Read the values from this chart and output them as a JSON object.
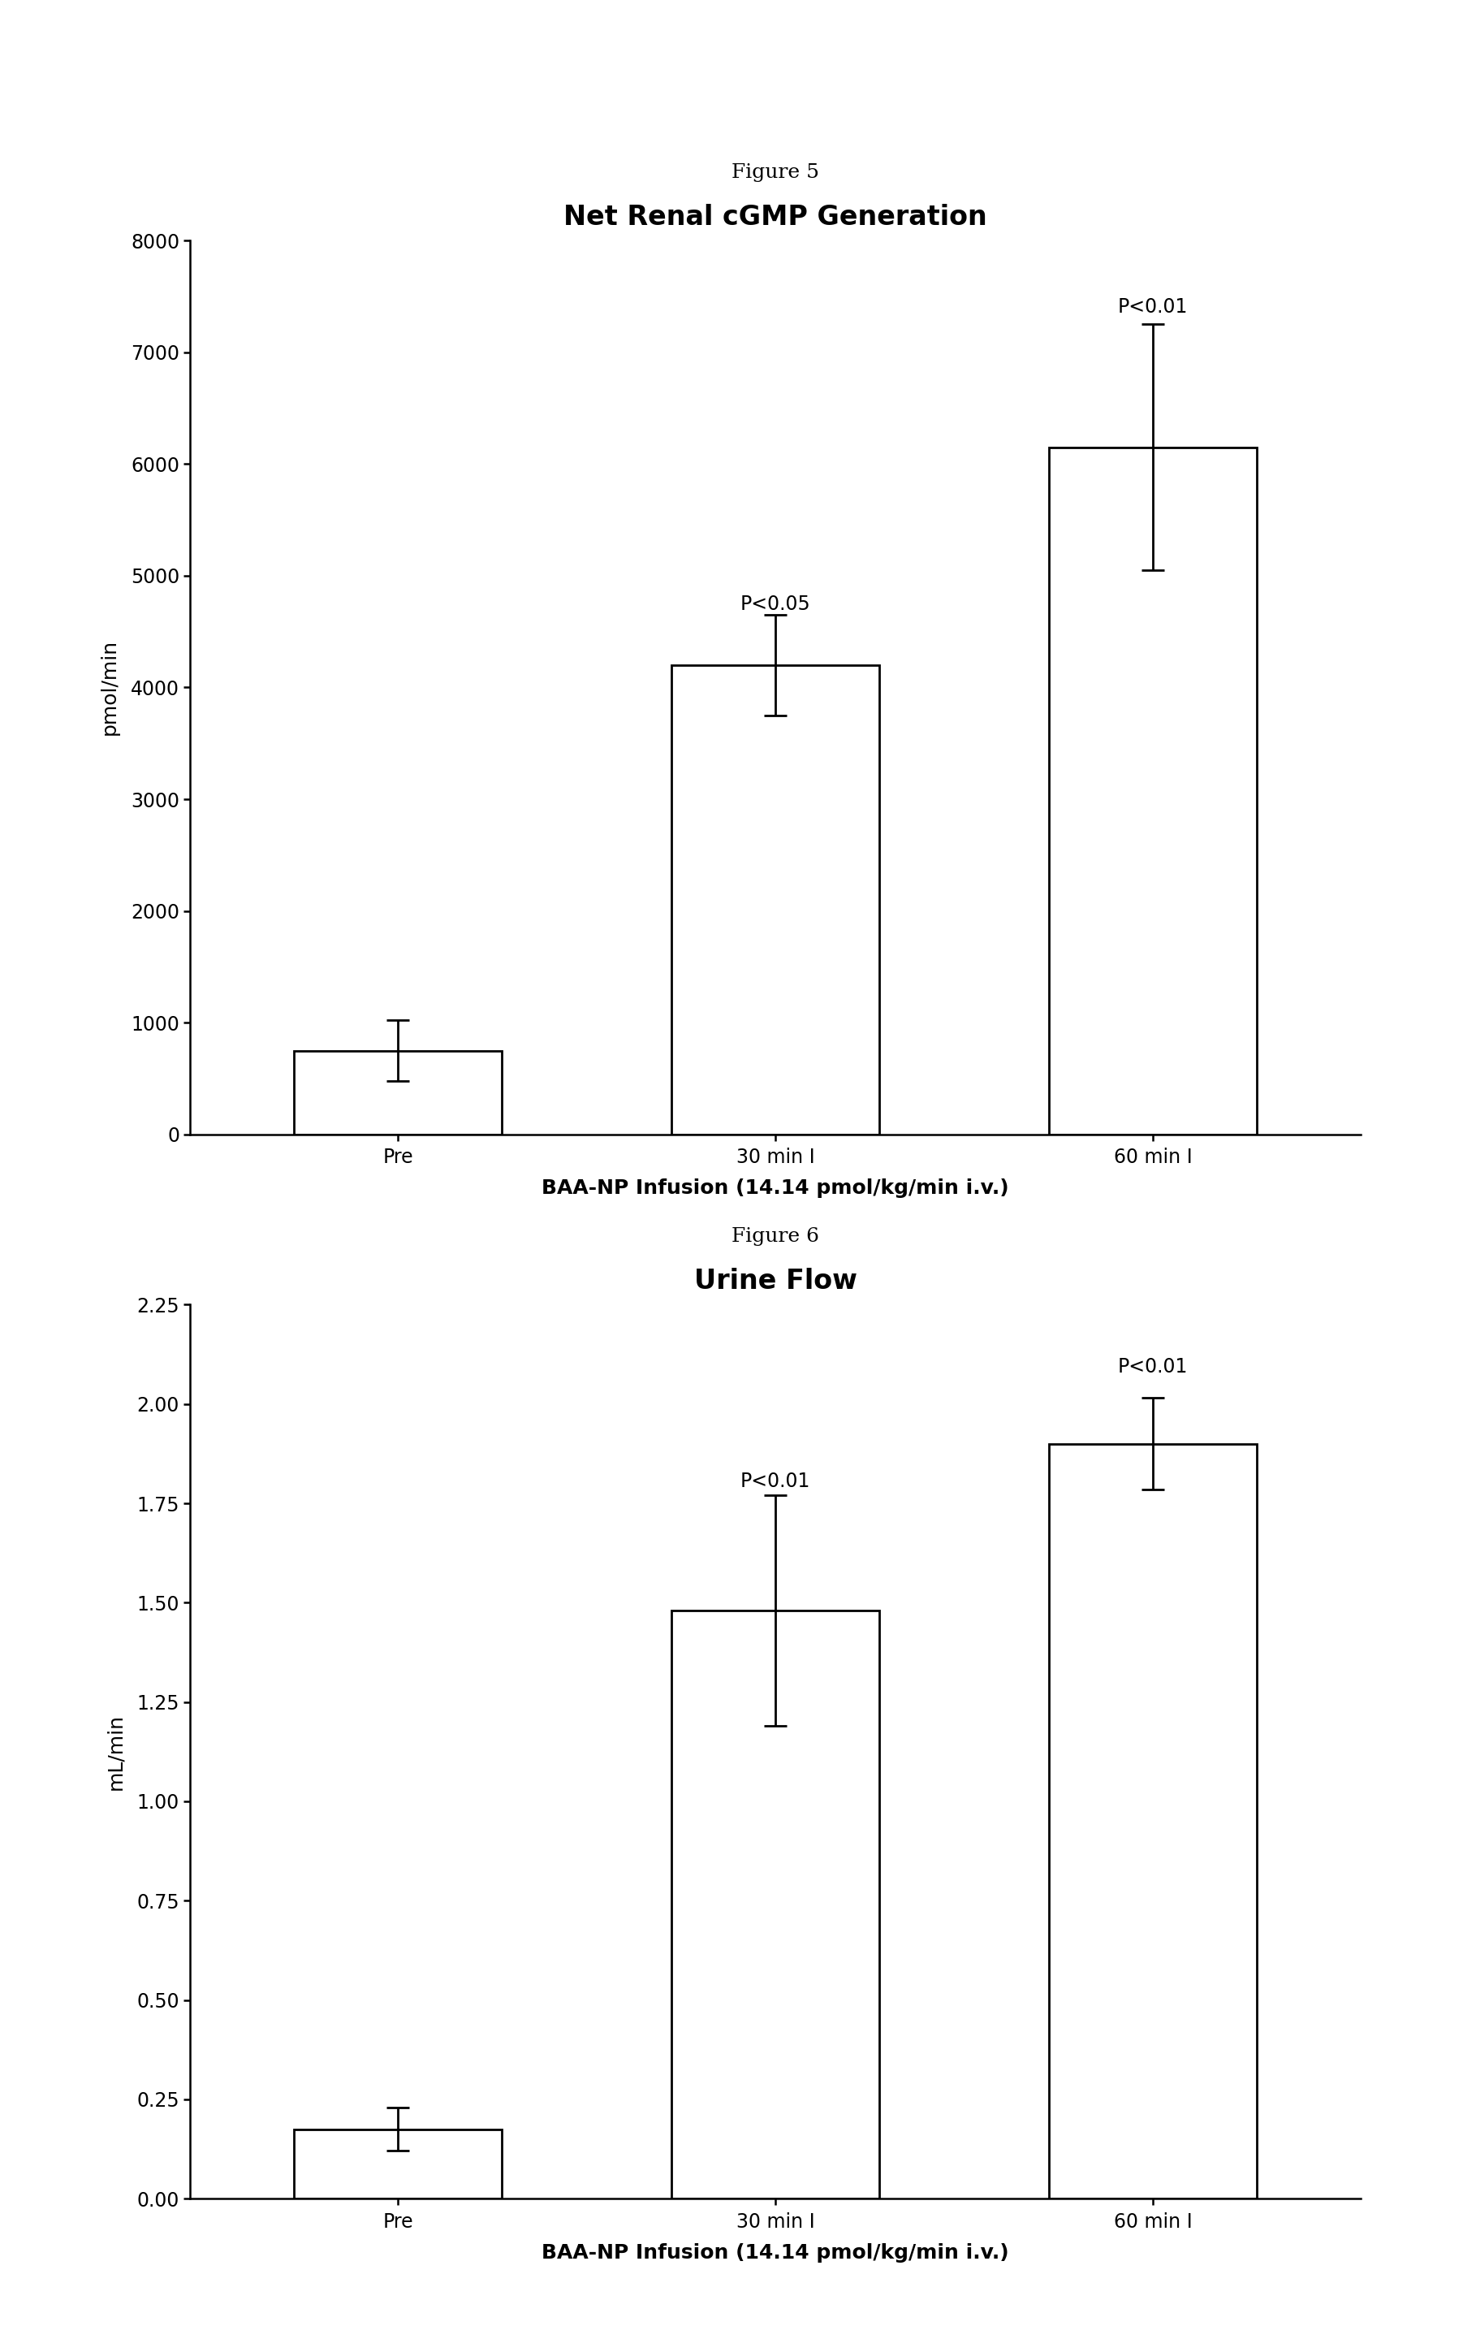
{
  "fig5": {
    "title": "Net Renal cGMP Generation",
    "figure_label": "Figure 5",
    "categories": [
      "Pre",
      "30 min I",
      "60 min I"
    ],
    "values": [
      750,
      4200,
      6150
    ],
    "errors": [
      270,
      450,
      1100
    ],
    "ylabel": "pmol/min",
    "xlabel": "BAA-NP Infusion (14.14 pmol/kg/min i.v.)",
    "ylim": [
      0,
      8000
    ],
    "yticks": [
      0,
      1000,
      2000,
      3000,
      4000,
      5000,
      6000,
      7000,
      8000
    ],
    "pvalues": [
      "",
      "P<0.05",
      "P<0.01"
    ],
    "pvalue_positions": [
      null,
      4660,
      7320
    ]
  },
  "fig6": {
    "title": "Urine Flow",
    "figure_label": "Figure 6",
    "categories": [
      "Pre",
      "30 min I",
      "60 min I"
    ],
    "values": [
      0.175,
      1.48,
      1.9
    ],
    "errors": [
      0.055,
      0.29,
      0.115
    ],
    "ylabel": "mL/min",
    "xlabel": "BAA-NP Infusion (14.14 pmol/kg/min i.v.)",
    "ylim": [
      0.0,
      2.25
    ],
    "yticks": [
      0.0,
      0.25,
      0.5,
      0.75,
      1.0,
      1.25,
      1.5,
      1.75,
      2.0,
      2.25
    ],
    "pvalues": [
      "",
      "P<0.01",
      "P<0.01"
    ],
    "pvalue_positions": [
      null,
      1.78,
      2.07
    ]
  },
  "bar_color": "#ffffff",
  "bar_edgecolor": "#000000",
  "bar_linewidth": 2.0,
  "bar_width": 0.55,
  "error_capsize": 10,
  "error_linewidth": 2.0,
  "title_fontsize": 24,
  "label_fontsize": 18,
  "tick_fontsize": 17,
  "pvalue_fontsize": 17,
  "figure_label_fontsize": 18,
  "xlabel_fontsize": 18,
  "background_color": "#ffffff"
}
